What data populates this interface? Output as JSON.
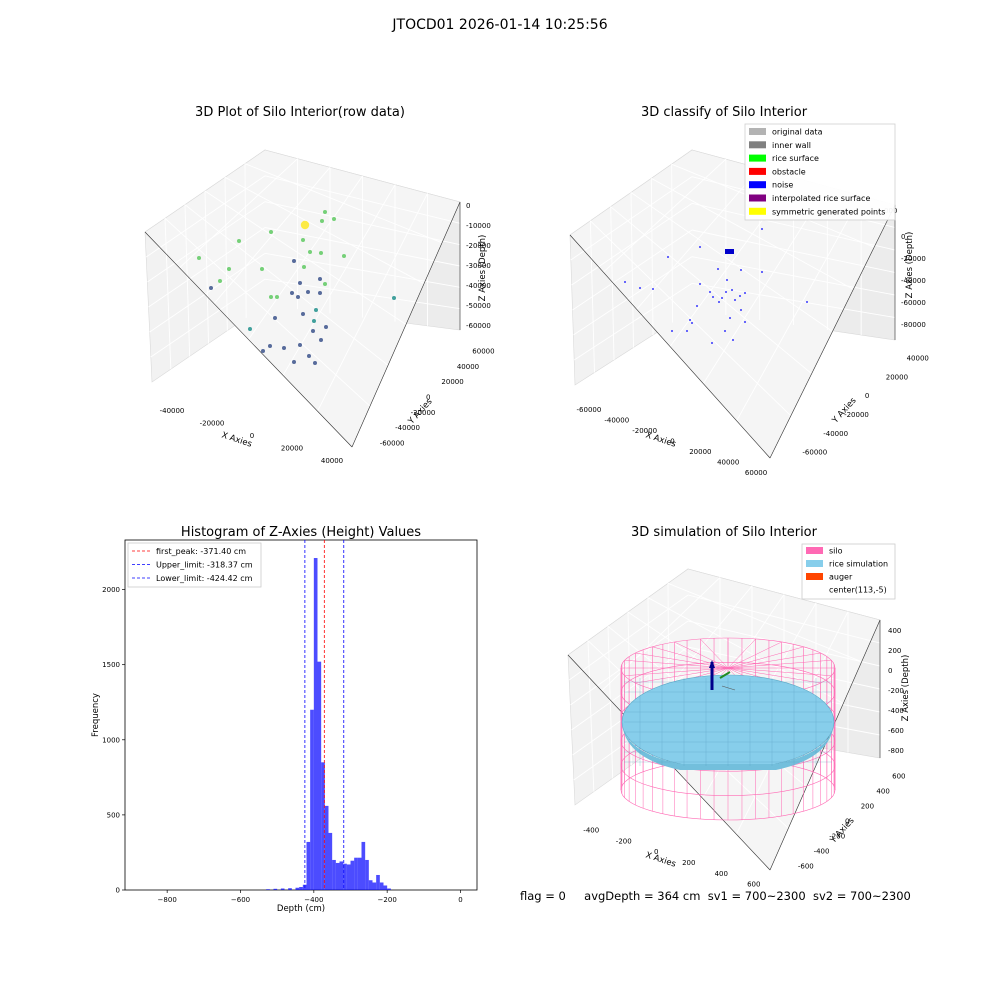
{
  "figure_title": "JTOCD01 2026-01-14 10:25:56",
  "status": {
    "flag": "flag = 0",
    "avg_depth": "avgDepth = 364 cm",
    "sv1": "sv1 = 700~2300",
    "sv2": "sv2 = 700~2300"
  },
  "chart_data": [
    {
      "id": "raw",
      "type": "scatter",
      "title": "3D Plot of Silo Interior(row data)",
      "xlabel": "X Axies",
      "ylabel": "Y Axies",
      "zlabel": "Z Axies (Depth)",
      "x_ticks": [
        "-40000",
        "-20000",
        "0",
        "20000",
        "40000"
      ],
      "y_ticks": [
        "-60000",
        "-40000",
        "-20000",
        "0",
        "20000",
        "40000",
        "60000"
      ],
      "z_ticks": [
        "0",
        "-10000",
        "-20000",
        "-30000",
        "-40000",
        "-50000",
        "-60000"
      ],
      "grid": true,
      "colors": [
        "#440154",
        "#3b528b",
        "#21918c",
        "#5ec962",
        "#fde725"
      ]
    },
    {
      "id": "classify",
      "type": "scatter",
      "title": "3D classify of Silo Interior",
      "xlabel": "X Axies",
      "ylabel": "Y Axies",
      "zlabel": "Z Axies (Depth)",
      "x_ticks": [
        "-60000",
        "-40000",
        "-20000",
        "0",
        "20000",
        "40000",
        "60000"
      ],
      "y_ticks": [
        "-60000",
        "-40000",
        "-20000",
        "0",
        "20000",
        "40000"
      ],
      "z_ticks": [
        "0",
        "-20000",
        "-40000",
        "-60000",
        "-80000"
      ],
      "legend_position": "top-right",
      "legend": [
        {
          "label": "original data",
          "color": "#b3b3b3"
        },
        {
          "label": "inner wall",
          "color": "#808080"
        },
        {
          "label": "rice surface",
          "color": "#00ff00"
        },
        {
          "label": "obstacle",
          "color": "#ff0000"
        },
        {
          "label": "noise",
          "color": "#0000ff"
        },
        {
          "label": "interpolated rice surface",
          "color": "#800080"
        },
        {
          "label": "symmetric generated points",
          "color": "#ffff00"
        }
      ],
      "hidden_tick": "000",
      "grid": true
    },
    {
      "id": "hist",
      "type": "bar",
      "title": "Histogram of Z-Axies (Height) Values",
      "xlabel": "Depth (cm)",
      "ylabel": "Frequency",
      "xlim": [
        -915,
        45
      ],
      "ylim": [
        0,
        2330
      ],
      "x_ticks": [
        -800,
        -600,
        -400,
        -200,
        0
      ],
      "y_ticks": [
        0,
        500,
        1000,
        1500,
        2000
      ],
      "bar_color": "#0000ff",
      "bins": [
        [
          -530,
          5
        ],
        [
          -510,
          8
        ],
        [
          -490,
          10
        ],
        [
          -470,
          12
        ],
        [
          -450,
          15
        ],
        [
          -440,
          20
        ],
        [
          -430,
          35
        ],
        [
          -420,
          320
        ],
        [
          -410,
          1200
        ],
        [
          -400,
          2210
        ],
        [
          -390,
          1520
        ],
        [
          -380,
          850
        ],
        [
          -370,
          560
        ],
        [
          -360,
          380
        ],
        [
          -350,
          200
        ],
        [
          -340,
          180
        ],
        [
          -330,
          190
        ],
        [
          -320,
          175
        ],
        [
          -310,
          170
        ],
        [
          -300,
          195
        ],
        [
          -290,
          215
        ],
        [
          -280,
          215
        ],
        [
          -270,
          320
        ],
        [
          -260,
          200
        ],
        [
          -250,
          65
        ],
        [
          -240,
          50
        ],
        [
          -230,
          100
        ],
        [
          -220,
          50
        ],
        [
          -210,
          30
        ],
        [
          -200,
          10
        ]
      ],
      "lines": [
        {
          "label": "first_peak: -371.40 cm",
          "value": -371.4,
          "color": "#ff0000"
        },
        {
          "label": "Upper_limit: -318.37 cm",
          "value": -318.37,
          "color": "#0000ff"
        },
        {
          "label": "Lower_limit: -424.42 cm",
          "value": -424.42,
          "color": "#0000ff"
        }
      ],
      "legend_position": "upper-left"
    },
    {
      "id": "sim",
      "type": "surface",
      "title": "3D simulation of Silo Interior",
      "xlabel": "X Axies",
      "ylabel": "Y Axies",
      "zlabel": "Z Axies (Depth)",
      "x_ticks": [
        "-400",
        "-200",
        "0",
        "200",
        "400",
        "600"
      ],
      "y_ticks": [
        "-600",
        "-400",
        "-200",
        "0",
        "200",
        "400",
        "600"
      ],
      "z_ticks": [
        "400",
        "200",
        "0",
        "-200",
        "-400",
        "-600",
        "-800"
      ],
      "legend_position": "top-right",
      "legend": [
        {
          "label": "silo",
          "color": "#ff69b4"
        },
        {
          "label": "rice simulation",
          "color": "#87ceeb"
        },
        {
          "label": "auger",
          "color": "#ff4500"
        },
        {
          "label": "center(113,-5)",
          "color": ""
        }
      ],
      "grid": true
    }
  ]
}
